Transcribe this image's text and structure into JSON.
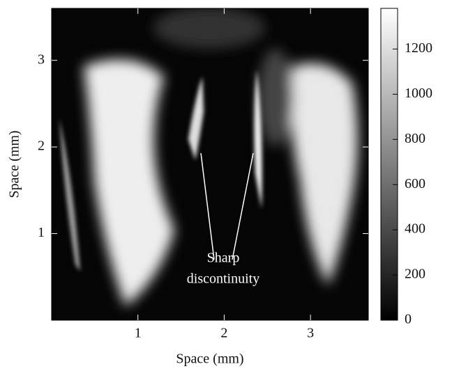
{
  "chart_data": {
    "type": "heatmap",
    "xlabel": "Space (mm)",
    "ylabel": "Space (mm)",
    "xlim": [
      0,
      3.67
    ],
    "ylim": [
      0,
      3.6
    ],
    "xticks": [
      1,
      2,
      3
    ],
    "yticks": [
      1,
      2,
      3
    ],
    "colorbar": {
      "lim": [
        0,
        1380
      ],
      "ticks": [
        0,
        200,
        400,
        600,
        800,
        1000,
        1200
      ]
    },
    "annotation": [
      "Sharp",
      "discontinuity"
    ]
  }
}
